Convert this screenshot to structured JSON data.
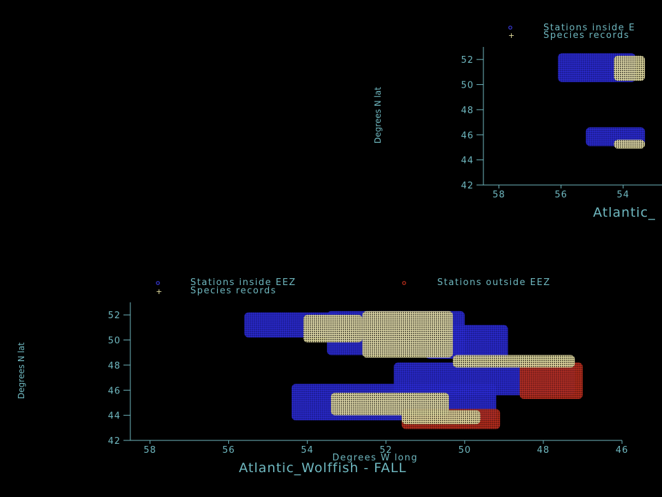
{
  "chart_data": [
    {
      "type": "scatter",
      "title": "Atlantic_",
      "xlabel": "",
      "ylabel": "Degrees N lat",
      "xlim": [
        58.5,
        46
      ],
      "ylim": [
        42,
        53
      ],
      "x_ticks": [
        "58",
        "56",
        "54"
      ],
      "y_ticks": [
        "52",
        "50",
        "48",
        "46",
        "44",
        "42"
      ],
      "legend": [
        {
          "label": "Stations inside E",
          "marker": "circle",
          "color": "#2a2ad8"
        },
        {
          "label": "Species records",
          "marker": "cross",
          "color": "#e6e0a0"
        }
      ],
      "series": [
        {
          "name": "Stations inside E",
          "regions": [
            {
              "lon": [
                56.1,
                53.6
              ],
              "lat": [
                50.2,
                52.5
              ]
            },
            {
              "lon": [
                55.2,
                53.3
              ],
              "lat": [
                45.1,
                46.6
              ]
            }
          ]
        },
        {
          "name": "Species records",
          "regions": [
            {
              "lon": [
                54.3,
                53.3
              ],
              "lat": [
                50.3,
                52.3
              ]
            },
            {
              "lon": [
                54.3,
                53.3
              ],
              "lat": [
                44.9,
                45.6
              ]
            }
          ]
        }
      ]
    },
    {
      "type": "scatter",
      "title": "Atlantic_Wolffish - FALL",
      "xlabel": "Degrees W long",
      "ylabel": "Degrees N lat",
      "xlim": [
        58.5,
        46
      ],
      "ylim": [
        42,
        53
      ],
      "x_ticks": [
        "58",
        "56",
        "54",
        "52",
        "50",
        "48",
        "46"
      ],
      "y_ticks": [
        "52",
        "50",
        "48",
        "46",
        "44",
        "42"
      ],
      "legend": [
        {
          "label": "Stations inside EEZ",
          "marker": "circle",
          "color": "#2a2ad8"
        },
        {
          "label": "Stations outside EEZ",
          "marker": "circle",
          "color": "#c0301e"
        },
        {
          "label": "Species records",
          "marker": "cross",
          "color": "#e6e0a0"
        }
      ],
      "series": [
        {
          "name": "Stations inside EEZ",
          "regions": [
            {
              "lon": [
                55.6,
                53.2
              ],
              "lat": [
                50.2,
                52.2
              ]
            },
            {
              "lon": [
                53.5,
                50.0
              ],
              "lat": [
                48.8,
                52.3
              ]
            },
            {
              "lon": [
                51.0,
                48.9
              ],
              "lat": [
                48.5,
                51.2
              ]
            },
            {
              "lon": [
                51.8,
                47.2
              ],
              "lat": [
                45.6,
                48.2
              ]
            },
            {
              "lon": [
                54.4,
                49.2
              ],
              "lat": [
                43.6,
                46.5
              ]
            }
          ]
        },
        {
          "name": "Stations outside EEZ",
          "regions": [
            {
              "lon": [
                48.6,
                47.0
              ],
              "lat": [
                45.3,
                48.2
              ]
            },
            {
              "lon": [
                51.6,
                49.1
              ],
              "lat": [
                42.9,
                44.5
              ]
            }
          ]
        },
        {
          "name": "Species records",
          "regions": [
            {
              "lon": [
                54.1,
                52.6
              ],
              "lat": [
                49.8,
                52.0
              ]
            },
            {
              "lon": [
                52.6,
                50.3
              ],
              "lat": [
                48.6,
                52.3
              ]
            },
            {
              "lon": [
                50.3,
                47.2
              ],
              "lat": [
                47.8,
                48.8
              ]
            },
            {
              "lon": [
                53.4,
                50.4
              ],
              "lat": [
                44.0,
                45.8
              ]
            },
            {
              "lon": [
                51.6,
                49.6
              ],
              "lat": [
                43.3,
                44.4
              ]
            }
          ]
        }
      ]
    }
  ]
}
